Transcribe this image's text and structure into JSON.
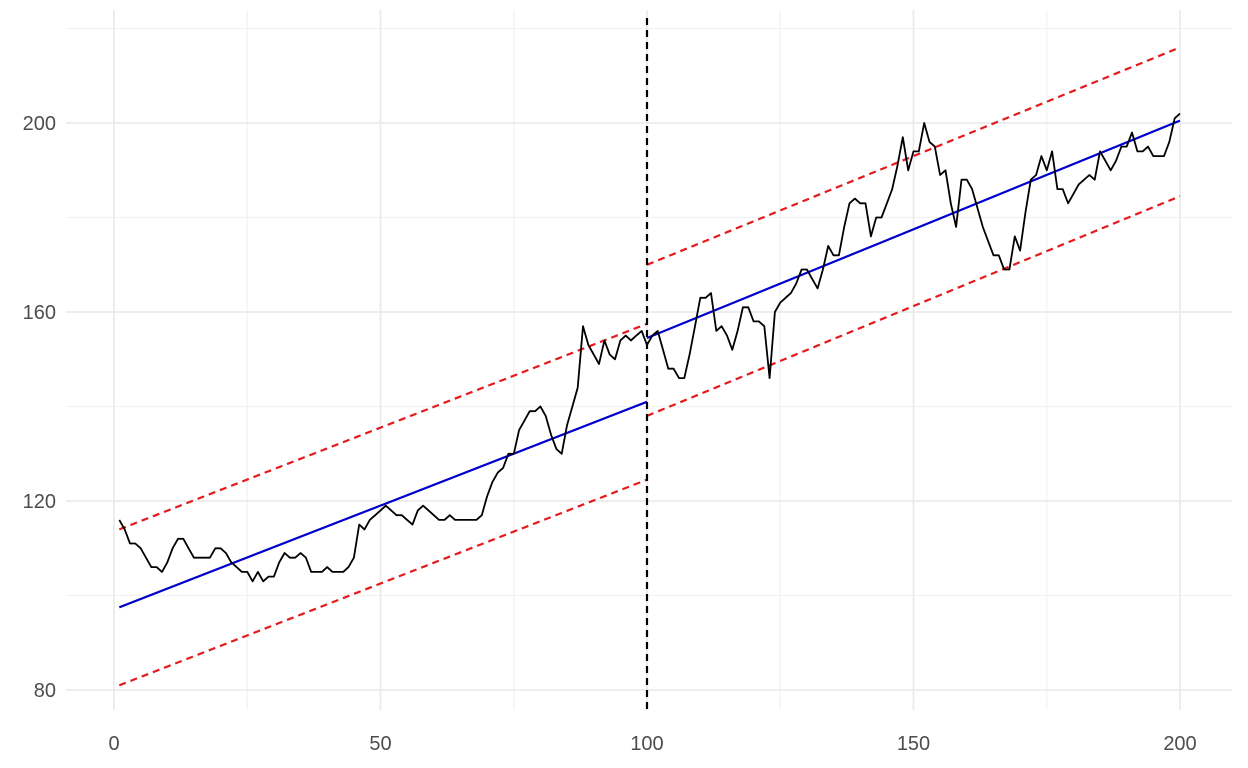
{
  "chart_data": {
    "type": "line",
    "title": "",
    "xlabel": "",
    "ylabel": "",
    "xlim": [
      0,
      205
    ],
    "ylim": [
      77,
      222
    ],
    "x_ticks": [
      0,
      50,
      100,
      150,
      200
    ],
    "y_ticks": [
      80,
      120,
      160,
      200
    ],
    "x_minor": [
      25,
      75,
      125,
      175
    ],
    "y_minor": [
      100,
      140,
      180,
      220
    ],
    "grid": true,
    "legend": "none",
    "break_x": 100,
    "colors": {
      "series": "#000000",
      "fit": "#0000cd",
      "band": "#e41a1c",
      "break": "#000000",
      "grid_major": "#ebebeb",
      "grid_minor": "#f2f2f2"
    },
    "series": [
      {
        "x": [
          1,
          2,
          3,
          4,
          5,
          6,
          7,
          8,
          9,
          10,
          11,
          12,
          13,
          14,
          15,
          16,
          17,
          18,
          19,
          20,
          21,
          22,
          23,
          24,
          25,
          26,
          27,
          28,
          29,
          30,
          31,
          32,
          33,
          34,
          35,
          36,
          37,
          38,
          39,
          40,
          41,
          42,
          43,
          44,
          45,
          46,
          47,
          48,
          49,
          50,
          51,
          52,
          53,
          54,
          55,
          56,
          57,
          58,
          59,
          60,
          61,
          62,
          63,
          64,
          65,
          66,
          67,
          68,
          69,
          70,
          71,
          72,
          73,
          74,
          75,
          76,
          77,
          78,
          79,
          80,
          81,
          82,
          83,
          84,
          85,
          86,
          87,
          88,
          89,
          90,
          91,
          92,
          93,
          94,
          95,
          96,
          97,
          98,
          99,
          100,
          101,
          102,
          103,
          104,
          105,
          106,
          107,
          108,
          109,
          110,
          111,
          112,
          113,
          114,
          115,
          116,
          117,
          118,
          119,
          120,
          121,
          122,
          123,
          124,
          125,
          126,
          127,
          128,
          129,
          130,
          131,
          132,
          133,
          134,
          135,
          136,
          137,
          138,
          139,
          140,
          141,
          142,
          143,
          144,
          145,
          146,
          147,
          148,
          149,
          150,
          151,
          152,
          153,
          154,
          155,
          156,
          157,
          158,
          159,
          160,
          161,
          162,
          163,
          164,
          165,
          166,
          167,
          168,
          169,
          170,
          171,
          172,
          173,
          174,
          175,
          176,
          177,
          178,
          179,
          180,
          181,
          182,
          183,
          184,
          185,
          186,
          187,
          188,
          189,
          190,
          191,
          192,
          193,
          194,
          195,
          196,
          197,
          198,
          199,
          200
        ],
        "y": [
          116,
          114,
          111,
          111,
          110,
          108,
          106,
          106,
          105,
          107,
          110,
          112,
          112,
          110,
          108,
          108,
          108,
          108,
          110,
          110,
          109,
          107,
          106,
          105,
          105,
          103,
          105,
          103,
          104,
          104,
          107,
          109,
          108,
          108,
          109,
          108,
          105,
          105,
          105,
          106,
          105,
          105,
          105,
          106,
          108,
          115,
          114,
          116,
          117,
          118,
          119,
          118,
          117,
          117,
          116,
          115,
          118,
          119,
          118,
          117,
          116,
          116,
          117,
          116,
          116,
          116,
          116,
          116,
          117,
          121,
          124,
          126,
          127,
          130,
          130,
          135,
          137,
          139,
          139,
          140,
          138,
          134,
          131,
          130,
          136,
          140,
          144,
          157,
          153,
          151,
          149,
          154,
          151,
          150,
          154,
          155,
          154,
          155,
          156,
          153,
          155,
          156,
          152,
          148,
          148,
          146,
          146,
          151,
          157,
          163,
          163,
          164,
          156,
          157,
          155,
          152,
          156,
          161,
          161,
          158,
          158,
          157,
          146,
          160,
          162,
          163,
          164,
          166,
          169,
          169,
          167,
          165,
          169,
          174,
          172,
          172,
          178,
          183,
          184,
          183,
          183,
          176,
          180,
          180,
          183,
          186,
          191,
          197,
          190,
          194,
          194,
          200,
          196,
          195,
          189,
          190,
          183,
          178,
          188,
          188,
          186,
          182,
          178,
          175,
          172,
          172,
          169,
          169,
          176,
          173,
          181,
          188,
          189,
          193,
          190,
          194,
          186,
          186,
          183,
          185,
          187,
          188,
          189,
          188,
          194,
          192,
          190,
          192,
          195,
          195,
          198,
          194,
          194,
          195,
          193,
          193,
          193,
          196,
          201,
          202
        ]
      },
      {
        "segments": [
          {
            "x": [
              1,
              100
            ],
            "y": [
              97.5,
              141
            ]
          },
          {
            "x": [
              100,
              200
            ],
            "y": [
              154.5,
              200.5
            ]
          }
        ]
      },
      {
        "segments": [
          {
            "x": [
              1,
              100
            ],
            "y": [
              114,
              157.5
            ]
          },
          {
            "x": [
              100,
              200
            ],
            "y": [
              170,
              216
            ]
          }
        ]
      },
      {
        "segments": [
          {
            "x": [
              1,
              100
            ],
            "y": [
              81,
              124.5
            ]
          },
          {
            "x": [
              100,
              200
            ],
            "y": [
              138,
              184.5
            ]
          }
        ]
      }
    ]
  }
}
